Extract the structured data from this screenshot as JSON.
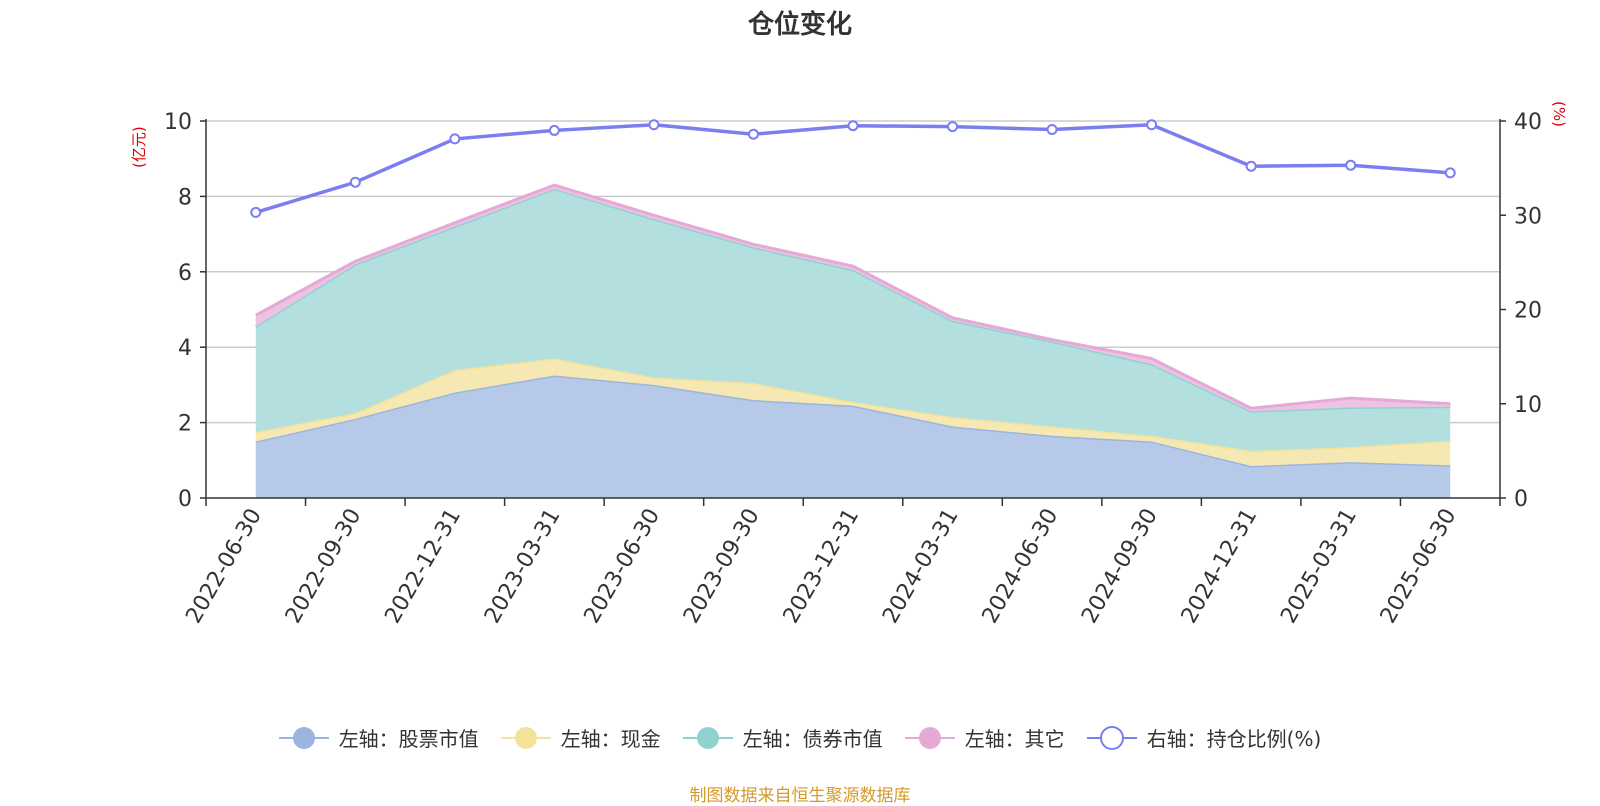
{
  "chart_data": {
    "type": "area",
    "title": "仓位变化",
    "categories": [
      "2022-06-30",
      "2022-09-30",
      "2022-12-31",
      "2023-03-31",
      "2023-06-30",
      "2023-09-30",
      "2023-12-31",
      "2024-03-31",
      "2024-06-30",
      "2024-09-30",
      "2024-12-31",
      "2025-03-31",
      "2025-06-30"
    ],
    "left_axis": {
      "unit": "(亿元)",
      "ylim": [
        0,
        10
      ],
      "ticks": [
        "0",
        "2",
        "4",
        "6",
        "8",
        "10"
      ]
    },
    "right_axis": {
      "unit": "(%)",
      "ylim": [
        0,
        40
      ],
      "ticks": [
        "0",
        "10",
        "20",
        "30",
        "40"
      ]
    },
    "series": [
      {
        "name": "左轴：股票市值",
        "axis": "left",
        "stack": true,
        "color": "#9bb5e0",
        "fill": "#b7c9e8",
        "values": [
          1.5,
          2.1,
          2.8,
          3.25,
          3.0,
          2.6,
          2.45,
          1.9,
          1.65,
          1.5,
          0.85,
          0.95,
          0.87
        ]
      },
      {
        "name": "左轴：现金",
        "axis": "left",
        "stack": true,
        "color": "#f5e29a",
        "fill": "#f6e8b2",
        "values": [
          0.25,
          0.15,
          0.6,
          0.45,
          0.2,
          0.45,
          0.1,
          0.25,
          0.25,
          0.15,
          0.4,
          0.4,
          0.65
        ]
      },
      {
        "name": "左轴：债券市值",
        "axis": "left",
        "stack": true,
        "color": "#8fd3d1",
        "fill": "#b3e0df",
        "values": [
          2.8,
          3.95,
          3.8,
          4.5,
          4.2,
          3.6,
          3.5,
          2.55,
          2.25,
          1.9,
          1.05,
          1.05,
          0.9
        ]
      },
      {
        "name": "左轴：其它",
        "axis": "left",
        "stack": true,
        "color": "#e5a9d6",
        "fill": "#eec2e2",
        "values": [
          0.3,
          0.08,
          0.1,
          0.1,
          0.1,
          0.08,
          0.1,
          0.08,
          0.05,
          0.15,
          0.08,
          0.25,
          0.08
        ]
      },
      {
        "name": "右轴：持仓比例(%)",
        "axis": "right",
        "stack": false,
        "color": "#7b7ef0",
        "values": [
          30.3,
          33.5,
          38.1,
          39.0,
          39.6,
          38.6,
          39.5,
          39.4,
          39.1,
          39.6,
          35.2,
          35.3,
          34.5
        ]
      }
    ],
    "grid": true,
    "legend_position": "bottom"
  },
  "source_note": "制图数据来自恒生聚源数据库"
}
